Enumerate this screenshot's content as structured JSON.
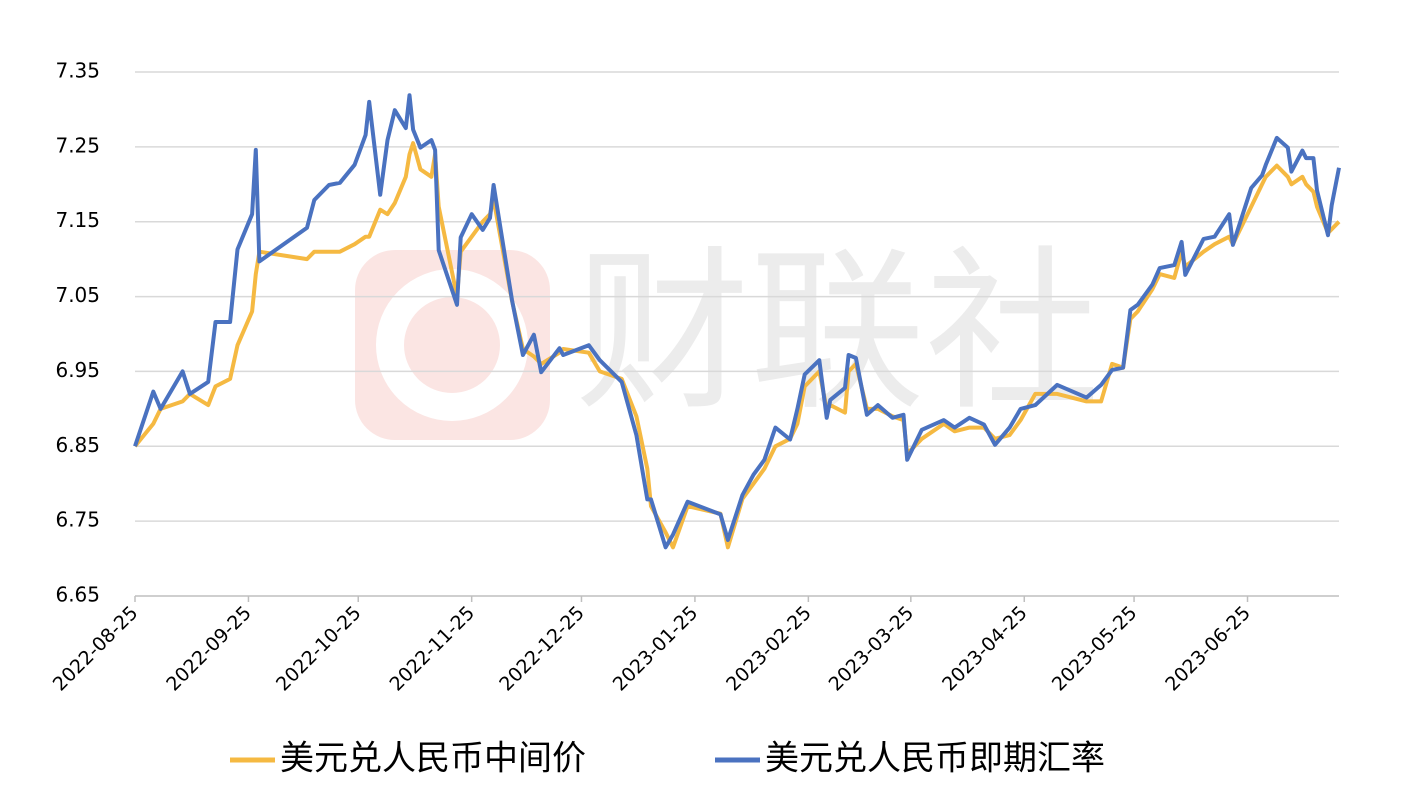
{
  "chart_data": {
    "type": "line",
    "watermark": "财联社",
    "x": [
      "2022-08-25",
      "2022-08-30",
      "2022-09-01",
      "2022-09-07",
      "2022-09-09",
      "2022-09-14",
      "2022-09-16",
      "2022-09-20",
      "2022-09-22",
      "2022-09-26",
      "2022-09-27",
      "2022-09-28",
      "2022-10-11",
      "2022-10-13",
      "2022-10-17",
      "2022-10-20",
      "2022-10-24",
      "2022-10-27",
      "2022-10-28",
      "2022-10-31",
      "2022-11-02",
      "2022-11-04",
      "2022-11-07",
      "2022-11-08",
      "2022-11-09",
      "2022-11-11",
      "2022-11-14",
      "2022-11-15",
      "2022-11-16",
      "2022-11-21",
      "2022-11-22",
      "2022-11-25",
      "2022-11-28",
      "2022-11-30",
      "2022-12-01",
      "2022-12-06",
      "2022-12-09",
      "2022-12-12",
      "2022-12-14",
      "2022-12-19",
      "2022-12-20",
      "2022-12-27",
      "2022-12-30",
      "2023-01-05",
      "2023-01-09",
      "2023-01-12",
      "2023-01-13",
      "2023-01-17",
      "2023-01-19",
      "2023-01-23",
      "2023-02-01",
      "2023-02-03",
      "2023-02-07",
      "2023-02-10",
      "2023-02-13",
      "2023-02-16",
      "2023-02-20",
      "2023-02-22",
      "2023-02-24",
      "2023-02-28",
      "2023-03-02",
      "2023-03-03",
      "2023-03-07",
      "2023-03-08",
      "2023-03-10",
      "2023-03-13",
      "2023-03-16",
      "2023-03-20",
      "2023-03-23",
      "2023-03-24",
      "2023-03-28",
      "2023-04-03",
      "2023-04-06",
      "2023-04-10",
      "2023-04-14",
      "2023-04-17",
      "2023-04-21",
      "2023-04-24",
      "2023-04-28",
      "2023-05-04",
      "2023-05-12",
      "2023-05-16",
      "2023-05-19",
      "2023-05-22",
      "2023-05-24",
      "2023-05-26",
      "2023-05-30",
      "2023-06-01",
      "2023-06-05",
      "2023-06-07",
      "2023-06-08",
      "2023-06-13",
      "2023-06-16",
      "2023-06-20",
      "2023-06-21",
      "2023-06-26",
      "2023-06-29",
      "2023-06-30",
      "2023-07-03",
      "2023-07-06",
      "2023-07-07",
      "2023-07-10",
      "2023-07-11",
      "2023-07-13",
      "2023-07-14",
      "2023-07-17",
      "2023-07-18",
      "2023-07-20"
    ],
    "series": [
      {
        "name": "美元兑人民币中间价",
        "color": "#f5b942",
        "values": [
          6.85,
          6.88,
          6.9,
          6.91,
          6.92,
          6.905,
          6.93,
          6.94,
          6.985,
          7.03,
          7.08,
          7.11,
          7.1,
          7.11,
          7.11,
          7.11,
          7.12,
          7.13,
          7.13,
          7.166,
          7.16,
          7.175,
          7.21,
          7.24,
          7.255,
          7.22,
          7.21,
          7.24,
          7.17,
          7.05,
          7.11,
          7.13,
          7.15,
          7.16,
          7.18,
          7.045,
          6.98,
          6.97,
          6.96,
          6.975,
          6.98,
          6.975,
          6.95,
          6.94,
          6.89,
          6.82,
          6.77,
          6.735,
          6.715,
          6.77,
          6.76,
          6.715,
          6.78,
          6.8,
          6.82,
          6.85,
          6.86,
          6.88,
          6.93,
          6.95,
          6.9,
          6.905,
          6.895,
          6.95,
          6.96,
          6.9,
          6.9,
          6.89,
          6.885,
          6.84,
          6.86,
          6.88,
          6.87,
          6.875,
          6.875,
          6.86,
          6.865,
          6.885,
          6.92,
          6.92,
          6.91,
          6.91,
          6.96,
          6.955,
          7.02,
          7.03,
          7.06,
          7.08,
          7.075,
          7.11,
          7.09,
          7.11,
          7.12,
          7.13,
          7.12,
          7.17,
          7.2,
          7.21,
          7.225,
          7.21,
          7.2,
          7.21,
          7.2,
          7.19,
          7.17,
          7.135,
          7.14,
          7.15
        ]
      },
      {
        "name": "美元兑人民币即期汇率",
        "color": "#4a72c0",
        "values": [
          6.85,
          6.923,
          6.9,
          6.95,
          6.92,
          6.936,
          7.016,
          7.016,
          7.113,
          7.16,
          7.246,
          7.097,
          7.142,
          7.179,
          7.199,
          7.202,
          7.226,
          7.266,
          7.31,
          7.186,
          7.259,
          7.299,
          7.275,
          7.319,
          7.273,
          7.249,
          7.259,
          7.246,
          7.112,
          7.039,
          7.129,
          7.16,
          7.139,
          7.155,
          7.199,
          7.046,
          6.972,
          6.999,
          6.949,
          6.981,
          6.972,
          6.985,
          6.965,
          6.936,
          6.865,
          6.779,
          6.779,
          6.715,
          6.732,
          6.776,
          6.759,
          6.725,
          6.785,
          6.812,
          6.832,
          6.875,
          6.859,
          6.9,
          6.946,
          6.965,
          6.888,
          6.912,
          6.928,
          6.972,
          6.968,
          6.892,
          6.905,
          6.888,
          6.892,
          6.832,
          6.872,
          6.885,
          6.875,
          6.888,
          6.879,
          6.852,
          6.875,
          6.9,
          6.905,
          6.932,
          6.915,
          6.932,
          6.952,
          6.955,
          7.032,
          7.039,
          7.066,
          7.088,
          7.092,
          7.123,
          7.079,
          7.127,
          7.13,
          7.16,
          7.119,
          7.195,
          7.212,
          7.226,
          7.262,
          7.249,
          7.217,
          7.245,
          7.235,
          7.235,
          7.192,
          7.132,
          7.172,
          7.222
        ]
      }
    ],
    "xlim": [
      "2022-08-25",
      "2023-07-20"
    ],
    "xticks": [
      "2022-08-25",
      "2022-09-25",
      "2022-10-25",
      "2022-11-25",
      "2022-12-25",
      "2023-01-25",
      "2023-02-25",
      "2023-03-25",
      "2023-04-25",
      "2023-05-25",
      "2023-06-25"
    ],
    "ylim": [
      6.65,
      7.35
    ],
    "yticks": [
      6.65,
      6.75,
      6.85,
      6.95,
      7.05,
      7.15,
      7.25,
      7.35
    ],
    "grid": true,
    "legend": "bottom"
  }
}
